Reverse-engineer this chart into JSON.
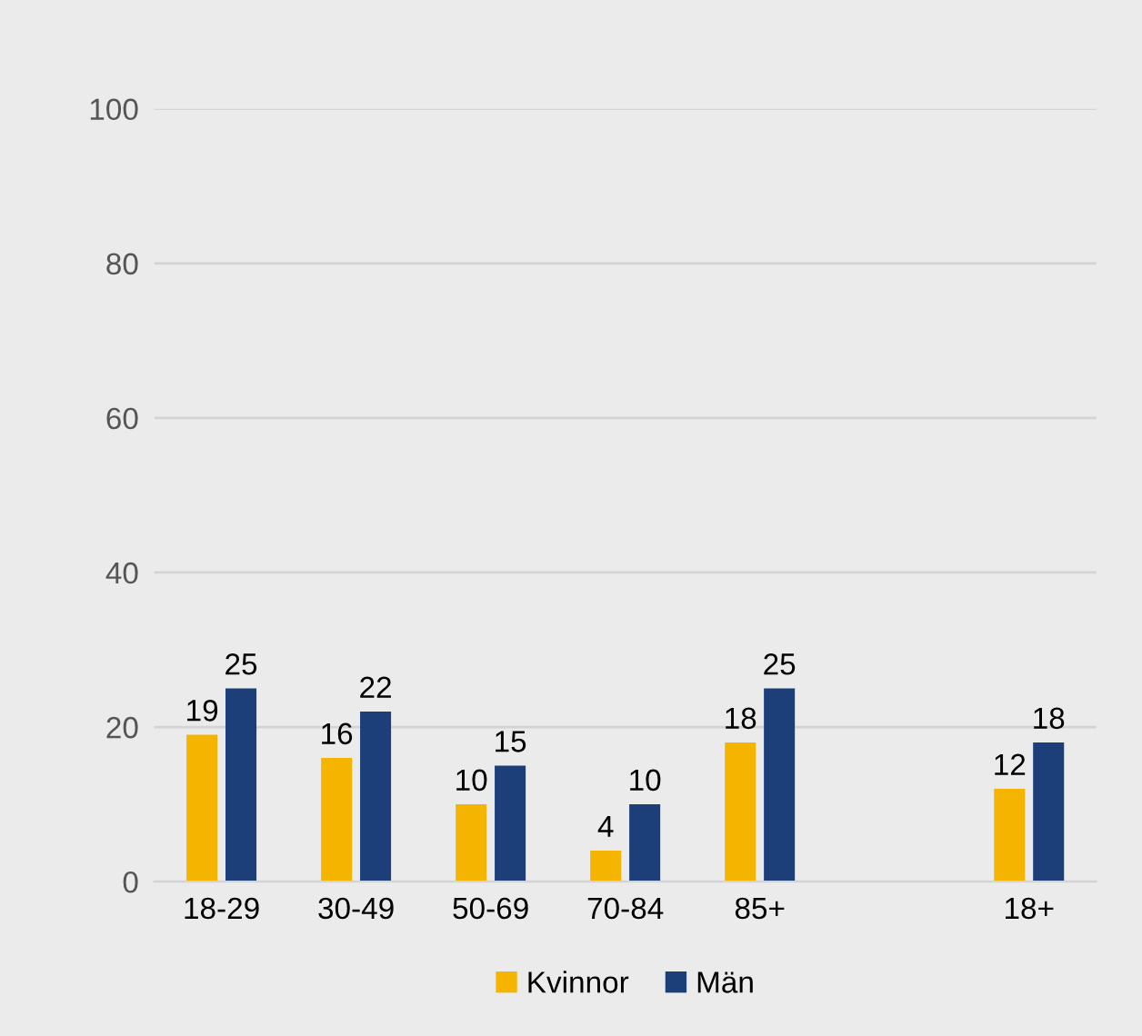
{
  "chart_data": {
    "type": "bar",
    "categories": [
      "18-29",
      "30-49",
      "50-69",
      "70-84",
      "85+",
      null,
      "18+"
    ],
    "series": [
      {
        "name": "Kvinnor",
        "color": "#f5b400",
        "values": [
          19,
          16,
          10,
          4,
          18,
          null,
          12
        ]
      },
      {
        "name": "Män",
        "color": "#1c3f7a",
        "values": [
          25,
          22,
          15,
          10,
          25,
          null,
          18
        ]
      }
    ],
    "ylim": [
      0,
      100
    ],
    "yticks": [
      0,
      20,
      40,
      60,
      80,
      100
    ],
    "grid": "y",
    "legend": "bottom",
    "data_labels": true
  }
}
